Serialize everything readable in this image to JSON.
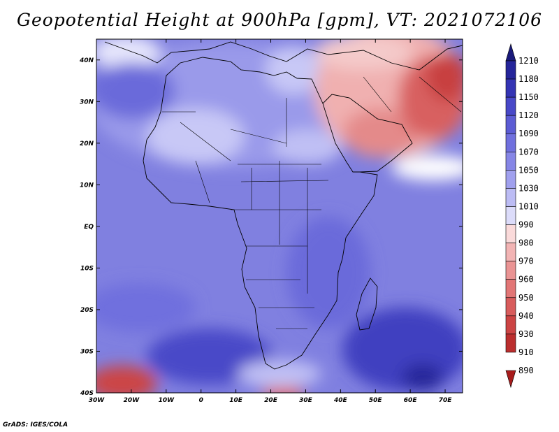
{
  "title": "Geopotential Height at 900hPa [gpm], VT: 2021072106",
  "footer": "GrADS: IGES/COLA",
  "map": {
    "region": "Africa",
    "variable": "Geopotential Height",
    "level": "900hPa",
    "units": "gpm",
    "valid_time": "2021072106",
    "lon_range": [
      -30,
      75
    ],
    "lat_range": [
      -40,
      45
    ],
    "x_ticks": [
      "30W",
      "20W",
      "10W",
      "0",
      "10E",
      "20E",
      "30E",
      "40E",
      "50E",
      "60E",
      "70E"
    ],
    "y_ticks": [
      "40N",
      "30N",
      "20N",
      "10N",
      "EQ",
      "10S",
      "20S",
      "30S",
      "40S"
    ]
  },
  "colorbar": {
    "labels": [
      "1210",
      "1180",
      "1150",
      "1120",
      "1090",
      "1070",
      "1050",
      "1030",
      "1010",
      "990",
      "980",
      "970",
      "960",
      "950",
      "940",
      "930",
      "910",
      "890"
    ],
    "colors": [
      "#1a1a7a",
      "#25259a",
      "#3434b4",
      "#4848c8",
      "#5c5cd4",
      "#7070de",
      "#8686e6",
      "#a0a0ee",
      "#bcbcf4",
      "#dcdcfa",
      "#fadada",
      "#f2b4b4",
      "#ea9494",
      "#e27676",
      "#d85c5c",
      "#cc4444",
      "#bb2e2e",
      "#a81c1c"
    ]
  }
}
